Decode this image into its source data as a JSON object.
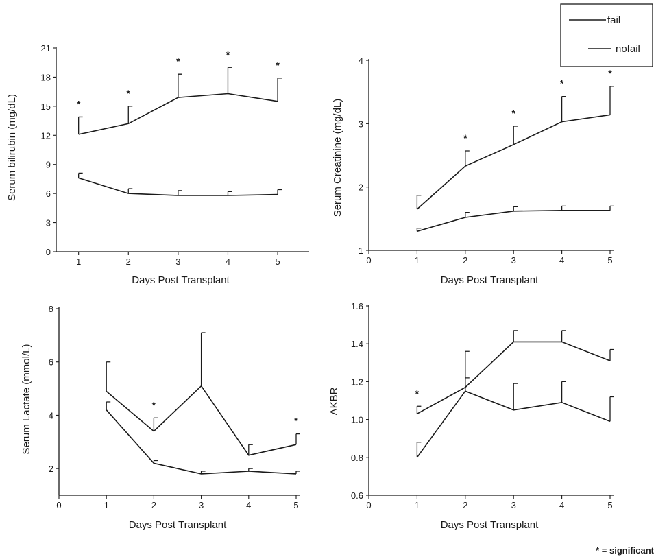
{
  "legend": {
    "items": [
      {
        "label": "fail"
      },
      {
        "label": "nofail"
      }
    ]
  },
  "footnote": "* = significant",
  "chart_data": [
    {
      "type": "line",
      "xlabel": "Days Post Transplant",
      "ylabel": "Serum bilirubin (mg/dL)",
      "xlim": [
        0.55,
        5.55
      ],
      "ylim": [
        0,
        21
      ],
      "xticks": [
        1,
        2,
        3,
        4,
        5
      ],
      "yticks": [
        0,
        3,
        6,
        9,
        12,
        15,
        18,
        21
      ],
      "x": [
        1,
        2,
        3,
        4,
        5
      ],
      "series": [
        {
          "name": "fail",
          "values": [
            12.1,
            13.2,
            15.9,
            16.3,
            15.5
          ],
          "error": [
            1.8,
            1.8,
            2.4,
            2.7,
            2.4
          ]
        },
        {
          "name": "nofail",
          "values": [
            7.6,
            6.0,
            5.8,
            5.8,
            5.9
          ],
          "error": [
            0.5,
            0.5,
            0.5,
            0.4,
            0.5
          ]
        }
      ],
      "significant_days": [
        1,
        2,
        3,
        4,
        5
      ]
    },
    {
      "type": "line",
      "xlabel": "Days Post Transplant",
      "ylabel": "Serum Creatinine (mg/dL)",
      "xlim": [
        0,
        5
      ],
      "ylim": [
        1,
        4
      ],
      "xticks": [
        0,
        1,
        2,
        3,
        4,
        5
      ],
      "yticks": [
        1,
        2,
        3,
        4
      ],
      "x": [
        1,
        2,
        3,
        4,
        5
      ],
      "series": [
        {
          "name": "fail",
          "values": [
            1.65,
            2.33,
            2.67,
            3.03,
            3.14
          ],
          "error": [
            0.22,
            0.24,
            0.29,
            0.4,
            0.45
          ]
        },
        {
          "name": "nofail",
          "values": [
            1.3,
            1.52,
            1.62,
            1.63,
            1.63
          ],
          "error": [
            0.05,
            0.08,
            0.07,
            0.07,
            0.07
          ]
        }
      ],
      "significant_days": [
        2,
        3,
        4,
        5
      ]
    },
    {
      "type": "line",
      "xlabel": "Days Post Transplant",
      "ylabel": "Serum Lactate (mmol/L)",
      "xlim": [
        0,
        5
      ],
      "ylim": [
        1,
        8
      ],
      "xticks": [
        0,
        1,
        2,
        3,
        4,
        5
      ],
      "yticks": [
        2,
        4,
        6,
        8
      ],
      "x": [
        1,
        2,
        3,
        4,
        5
      ],
      "series": [
        {
          "name": "fail",
          "values": [
            4.9,
            3.4,
            5.1,
            2.5,
            2.9
          ],
          "error": [
            1.1,
            0.5,
            2.0,
            0.4,
            0.4
          ]
        },
        {
          "name": "nofail",
          "values": [
            4.2,
            2.2,
            1.8,
            1.9,
            1.8
          ],
          "error": [
            0.3,
            0.1,
            0.1,
            0.1,
            0.1
          ]
        }
      ],
      "significant_days": [
        2,
        5
      ]
    },
    {
      "type": "line",
      "xlabel": "Days Post Transplant",
      "ylabel": "AKBR",
      "xlim": [
        0,
        5
      ],
      "ylim": [
        0.6,
        1.6
      ],
      "xticks": [
        0,
        1,
        2,
        3,
        4,
        5
      ],
      "yticks": [
        0.6,
        0.8,
        1.0,
        1.2,
        1.4,
        1.6
      ],
      "ytick_labels": [
        "0.6",
        "0.8",
        "1.0",
        "1.2",
        "1.4",
        "1.6"
      ],
      "x": [
        1,
        2,
        3,
        4,
        5
      ],
      "series": [
        {
          "name": "nofail",
          "values": [
            1.03,
            1.17,
            1.41,
            1.41,
            1.31
          ],
          "error": [
            0.04,
            0.05,
            0.06,
            0.06,
            0.06
          ]
        },
        {
          "name": "fail",
          "values": [
            0.8,
            1.15,
            1.05,
            1.09,
            0.99
          ],
          "error": [
            0.08,
            0.21,
            0.14,
            0.11,
            0.13
          ]
        }
      ],
      "significant_days": [
        1
      ]
    }
  ]
}
